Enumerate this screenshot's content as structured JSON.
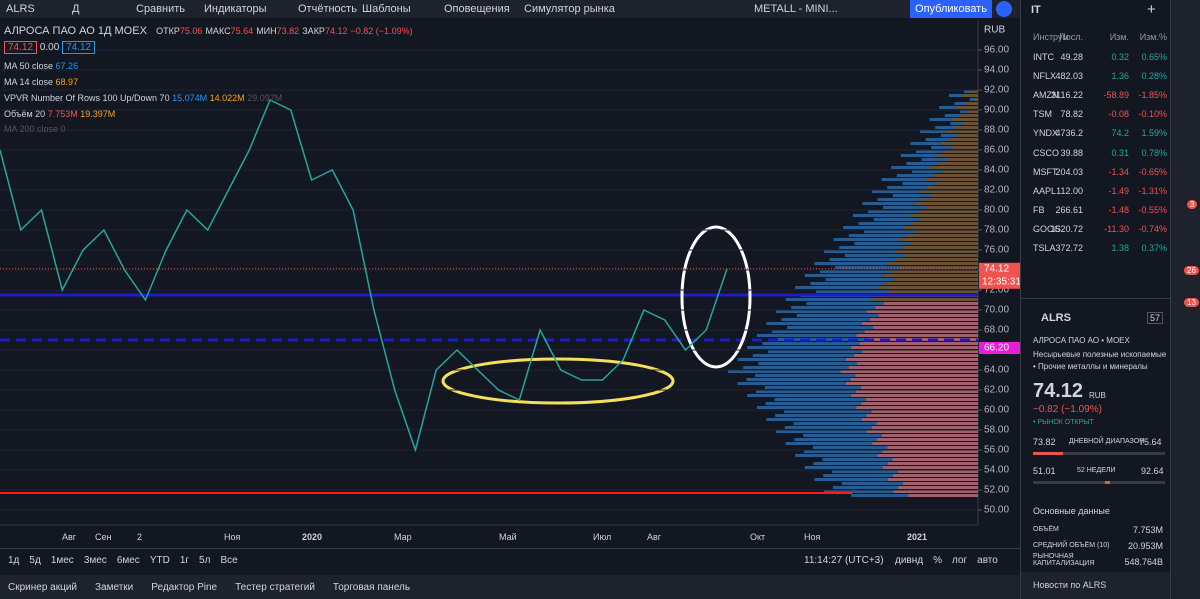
{
  "toolbar": {
    "symbol": "ALRS",
    "interval": "Д",
    "items": [
      "Сравнить",
      "Индикаторы",
      "Отчётность",
      "Шаблоны",
      "Оповещения",
      "Симулятор рынка"
    ],
    "layout": "METALL - MINI...",
    "publish": "Опубликовать"
  },
  "legend": {
    "name": "АЛРОСА ПАО АО",
    "tf": "1Д",
    "exchange": "MOEX",
    "open_label": "ОТКР",
    "open": "75.06",
    "high_label": "МАКС",
    "high": "75.64",
    "low_label": "МИН",
    "low": "73.82",
    "close_label": "ЗАКР",
    "close": "74.12",
    "change": "−0.82 (−1.09%)",
    "bid": "74.12",
    "spread": "0.00",
    "ask": "74.12",
    "ma50": "MA 50 close",
    "ma50_val": "67.26",
    "ma14": "MA 14 close",
    "ma14_val": "68.97",
    "vpvr": "VPVR Number Of Rows 100 Up/Down 70",
    "vpvr_up": "15.074M",
    "vpvr_down": "14.022M",
    "vpvr_total": "29.097M",
    "vol": "Объём 20",
    "vol_val": "7.753M",
    "vol_ma": "19.397M",
    "ma200": "MA 200 close 0"
  },
  "chart": {
    "currency": "RUB",
    "ylim": [
      48.5,
      99
    ],
    "yticks": [
      {
        "value": 50,
        "label": "50.00"
      },
      {
        "value": 52,
        "label": "52.00"
      },
      {
        "value": 54,
        "label": "54.00"
      },
      {
        "value": 56,
        "label": "56.00"
      },
      {
        "value": 58,
        "label": "58.00"
      },
      {
        "value": 60,
        "label": "60.00"
      },
      {
        "value": 62,
        "label": "62.00"
      },
      {
        "value": 64,
        "label": "64.00"
      },
      {
        "value": 66,
        "label": "66.00"
      },
      {
        "value": 68,
        "label": "68.00"
      },
      {
        "value": 70,
        "label": "70.00"
      },
      {
        "value": 72,
        "label": "72.00"
      },
      {
        "value": 74,
        "label": "74.00"
      },
      {
        "value": 76,
        "label": "76.00"
      },
      {
        "value": 78,
        "label": "78.00"
      },
      {
        "value": 80,
        "label": "80.00"
      },
      {
        "value": 82,
        "label": "82.00"
      },
      {
        "value": 84,
        "label": "84.00"
      },
      {
        "value": 86,
        "label": "86.00"
      },
      {
        "value": 88,
        "label": "88.00"
      },
      {
        "value": 90,
        "label": "90.00"
      },
      {
        "value": 92,
        "label": "92.00"
      },
      {
        "value": 94,
        "label": "94.00"
      },
      {
        "value": 96,
        "label": "96.00"
      }
    ],
    "closes": [
      86,
      78,
      80,
      72,
      76,
      78,
      74,
      71,
      76,
      80,
      78,
      82,
      86,
      91,
      90,
      83,
      84,
      80,
      70,
      62,
      56,
      64,
      66,
      64,
      62,
      61,
      68,
      64,
      63,
      63,
      65,
      70,
      69,
      66,
      68,
      74.12
    ],
    "last_price": {
      "value": 74.12,
      "label": "74.12"
    },
    "countdown": "12:35:31",
    "level": {
      "value": 66.2,
      "label": "66.20"
    },
    "time_labels": [
      "Авг",
      "Сен",
      "2",
      "Ноя",
      "2020",
      "Мар",
      "Май",
      "Июл",
      "Авг",
      "Окт",
      "Ноя",
      "2021"
    ]
  },
  "timeframes": [
    "1д",
    "5д",
    "1мес",
    "3мес",
    "6мес",
    "YTD",
    "1г",
    "5л",
    "Все"
  ],
  "clock": "11:14:27 (UTC+3)",
  "axis_opts": [
    "дивнд",
    "%",
    "лог",
    "авто"
  ],
  "bottom_tabs": [
    "Скринер акций",
    "Заметки",
    "Редактор Pine",
    "Тестер стратегий",
    "Торговая панель"
  ],
  "watchlist": {
    "name": "IT",
    "headers": [
      "Инструм",
      "Посл.",
      "Изм.",
      "Изм.%"
    ],
    "rows": [
      [
        "INTC",
        "49.28",
        "0.32",
        "0.65%"
      ],
      [
        "NFLX",
        "482.03",
        "1.36",
        "0.28%"
      ],
      [
        "AMZN",
        "3116.22",
        "-58.89",
        "-1.85%"
      ],
      [
        "TSM",
        "78.82",
        "-0.08",
        "-0.10%"
      ],
      [
        "YNDX",
        "4736.2",
        "74.2",
        "1.59%"
      ],
      [
        "CSCO",
        "39.88",
        "0.31",
        "0.78%"
      ],
      [
        "MSFT",
        "204.03",
        "-1.34",
        "-0.65%"
      ],
      [
        "AAPL",
        "112.00",
        "-1.49",
        "-1.31%"
      ],
      [
        "FB",
        "266.61",
        "-1.48",
        "-0.55%"
      ],
      [
        "GOOG",
        "1520.72",
        "-11.30",
        "-0.74%"
      ],
      [
        "TSLA",
        "372.72",
        "1.38",
        "0.37%"
      ]
    ]
  },
  "details": {
    "symbol": "ALRS",
    "count": "57",
    "name": "АЛРОСА ПАО АО • MOEX",
    "sector": "Несырьевые полезные ископаемые",
    "industry": "• Прочие металлы и минералы",
    "price": "74.12",
    "currency": "RUB",
    "change": "−0.82 (−1.09%)",
    "status": "• РЫНОК ОТКРЫТ",
    "day_low": "73.82",
    "day_label": "ДНЕВНОЙ ДИАПАЗОН",
    "day_high": "75.64",
    "wk_low": "51.01",
    "wk_label": "52 НЕДЕЛИ",
    "wk_high": "92.64",
    "fundamentals": "Основные данные",
    "volume_label": "ОБЪЁМ",
    "volume": "7.753M",
    "avg_label": "СРЕДНИЙ ОБЪЁМ (10)",
    "avg": "20.953M",
    "cap_label": "РЫНОЧНАЯ КАПИТАЛИЗАЦИЯ",
    "cap": "548.764B",
    "news": "Новости по ALRS"
  },
  "badges": [
    "3",
    "26",
    "13"
  ]
}
